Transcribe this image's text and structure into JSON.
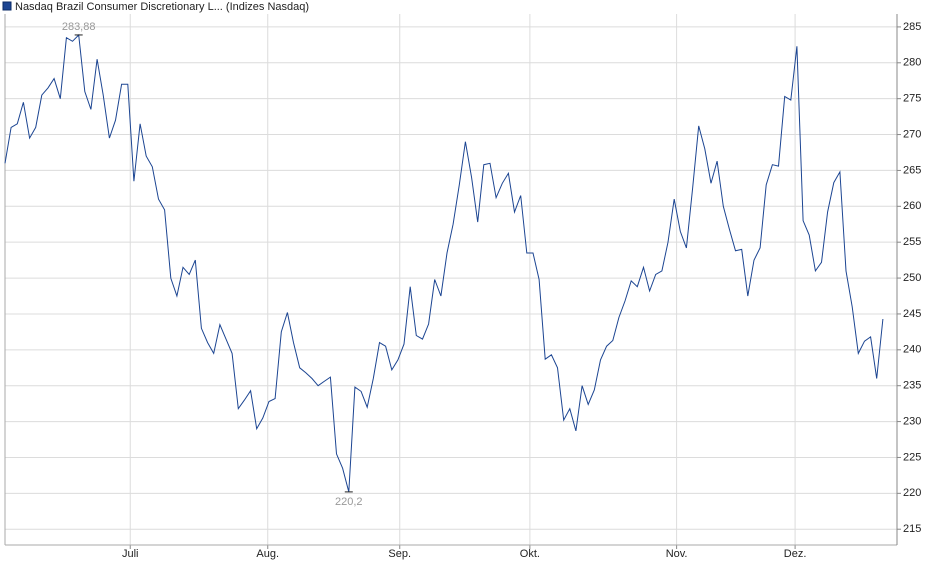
{
  "chart_data": {
    "type": "line",
    "title": "Nasdaq Brazil Consumer Discretionary L... (Indizes Nasdaq)",
    "color": "#1c4592",
    "values": [
      266,
      271,
      271.5,
      274.5,
      269.5,
      271,
      275.5,
      276.5,
      277.8,
      275,
      283.5,
      283,
      283.88,
      276,
      273.5,
      280.5,
      275.5,
      269.5,
      272,
      277,
      277,
      263.5,
      271.5,
      267,
      265.5,
      261,
      259.5,
      250,
      247.5,
      251.5,
      250.5,
      252.5,
      243,
      241,
      239.5,
      243.5,
      241.5,
      239.5,
      231.8,
      233,
      234.3,
      229,
      230.5,
      232.8,
      233.2,
      242.5,
      245.2,
      241,
      237.5,
      236.8,
      236,
      235,
      235.6,
      236.2,
      225.5,
      223.5,
      220.2,
      234.8,
      234.2,
      232,
      236,
      241,
      240.5,
      237.2,
      238.6,
      240.8,
      248.8,
      242,
      241.5,
      243.6,
      249.8,
      247.5,
      253.5,
      257.5,
      263,
      269,
      264,
      257.8,
      265.8,
      266,
      261.2,
      263.2,
      264.6,
      259.2,
      261.5,
      253.5,
      253.5,
      249.8,
      238.7,
      239.3,
      237.5,
      230.2,
      231.8,
      228.7,
      235,
      232.4,
      234.4,
      238.6,
      240.5,
      241.3,
      244.5,
      246.8,
      249.6,
      248.8,
      251.5,
      248.2,
      250.5,
      251,
      255,
      261,
      256.5,
      254.2,
      262.5,
      271.2,
      268,
      263.2,
      266.3,
      260,
      256.8,
      253.8,
      254,
      247.5,
      252.5,
      254.2,
      263,
      265.8,
      265.6,
      275.3,
      274.8,
      282.3,
      258,
      256,
      251,
      252.2,
      259.2,
      263.3,
      264.8,
      251,
      246,
      239.5,
      241.2,
      241.8,
      236,
      244.3
    ],
    "annotations": [
      {
        "value": 283.88,
        "label": "283,88"
      },
      {
        "value": 220.2,
        "label": "220,2"
      }
    ],
    "xlim": [
      0,
      145.3
    ],
    "xticks": [
      {
        "value": 20.4,
        "label": "Juli"
      },
      {
        "value": 42.8,
        "label": "Aug."
      },
      {
        "value": 64.3,
        "label": "Sep."
      },
      {
        "value": 85.5,
        "label": "Okt."
      },
      {
        "value": 109.4,
        "label": "Nov."
      },
      {
        "value": 128.7,
        "label": "Dez."
      }
    ],
    "ylim": [
      212.8,
      286.8
    ],
    "yticks": [
      215,
      220,
      225,
      230,
      235,
      240,
      245,
      250,
      255,
      260,
      265,
      270,
      275,
      280,
      285
    ],
    "grid": true
  }
}
